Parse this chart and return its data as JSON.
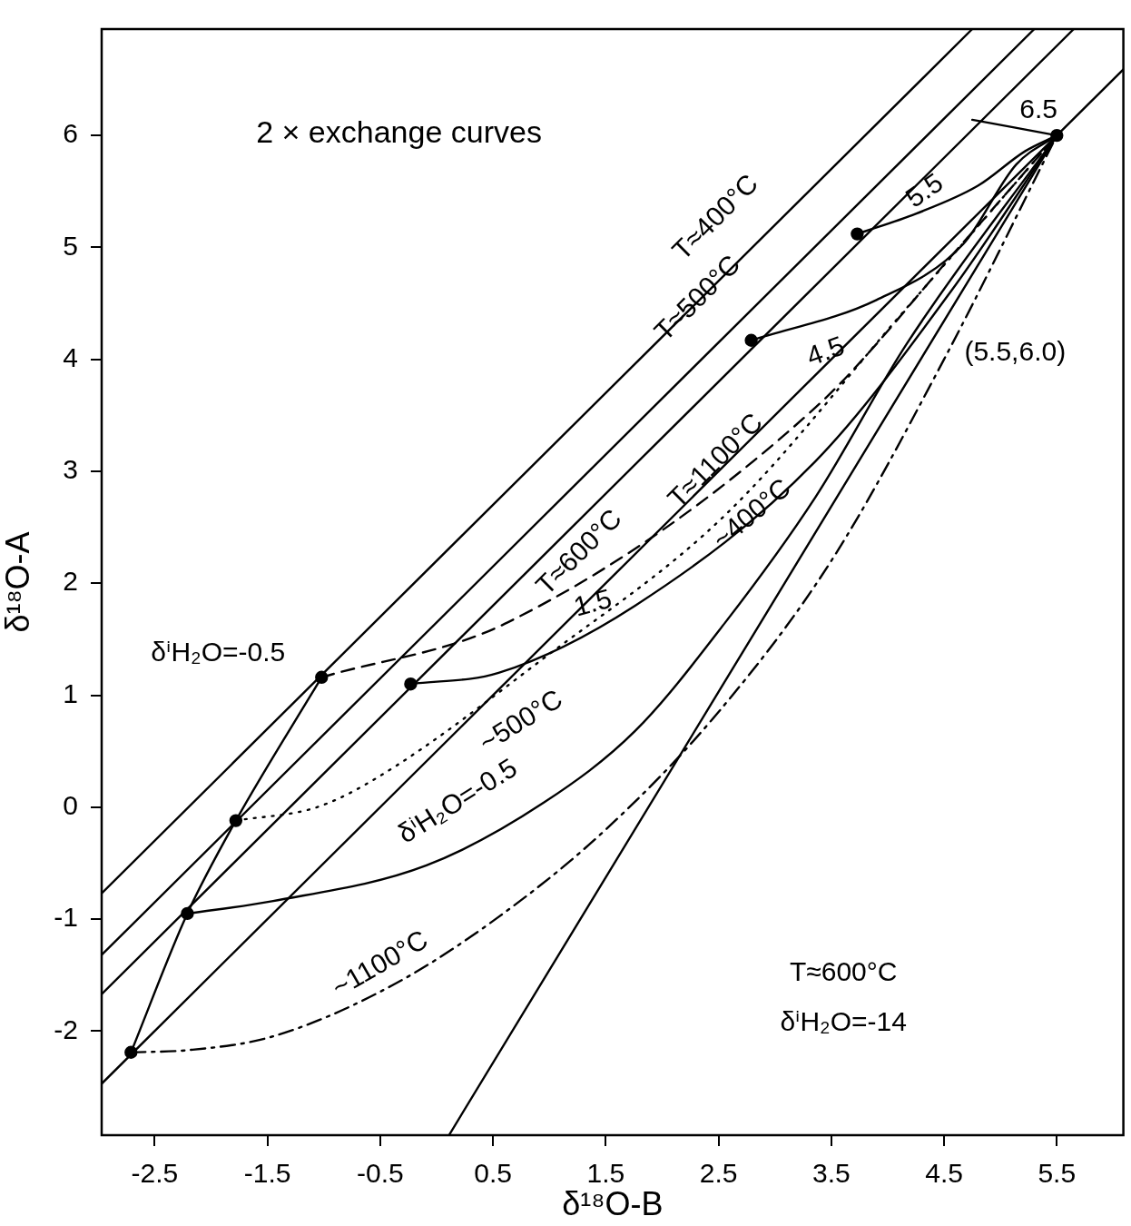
{
  "chart_data": {
    "type": "line",
    "xlabel": "δ¹⁸O-B",
    "ylabel": "δ¹⁸O-A",
    "xlim": [
      -2.97,
      6.09
    ],
    "ylim": [
      -2.93,
      6.95
    ],
    "xticks": [
      -2.5,
      -1.5,
      -0.5,
      0.5,
      1.5,
      2.5,
      3.5,
      4.5,
      5.5
    ],
    "yticks": [
      -2,
      -1,
      0,
      1,
      2,
      3,
      4,
      5,
      6
    ],
    "grid": false,
    "legend": false,
    "marker": "none",
    "series": [
      {
        "color": "#000000",
        "line_style": "solid",
        "x": [
          -2.97,
          4.75
        ],
        "values": [
          -0.77,
          6.95
        ]
      },
      {
        "color": "#000000",
        "line_style": "solid",
        "x": [
          -2.97,
          5.3
        ],
        "values": [
          -1.32,
          6.95
        ]
      },
      {
        "color": "#000000",
        "line_style": "solid",
        "x": [
          -2.97,
          5.65
        ],
        "values": [
          -1.67,
          6.95
        ]
      },
      {
        "color": "#000000",
        "line_style": "solid",
        "x": [
          -2.97,
          6.09
        ],
        "values": [
          -2.47,
          6.59
        ]
      },
      {
        "color": "#000000",
        "line_style": "solid",
        "x": [
          0.11,
          5.5
        ],
        "values": [
          -2.93,
          6.0
        ]
      },
      {
        "color": "#000000",
        "line_style": "solid",
        "x": [
          -2.71,
          -2.21,
          -1.78,
          -1.02
        ],
        "values": [
          -2.19,
          -0.95,
          -0.12,
          1.16
        ]
      },
      {
        "color": "#000000",
        "line_style": "dashed",
        "x": [
          -1.02,
          0.63,
          3.36,
          4.65,
          5.5
        ],
        "values": [
          1.16,
          1.65,
          3.57,
          5.02,
          6.0
        ]
      },
      {
        "color": "#000000",
        "line_style": "solid",
        "x": [
          -0.23,
          0.55,
          1.76,
          3.36,
          4.57,
          5.5
        ],
        "values": [
          1.1,
          1.2,
          1.8,
          3.09,
          4.62,
          6.0
        ]
      },
      {
        "color": "#000000",
        "line_style": "dotted",
        "x": [
          -1.78,
          -1.06,
          -0.5,
          0.95,
          2.56,
          4.17,
          5.5
        ],
        "values": [
          -0.12,
          0.0,
          0.28,
          1.33,
          2.61,
          4.46,
          6.0
        ]
      },
      {
        "color": "#000000",
        "line_style": "solid",
        "x": [
          -2.21,
          -1.46,
          -0.09,
          0.95,
          1.76,
          2.56,
          3.36,
          4.17,
          5.5
        ],
        "values": [
          -0.95,
          -0.84,
          -0.52,
          0.04,
          0.68,
          1.65,
          2.77,
          4.14,
          6.0
        ]
      },
      {
        "color": "#000000",
        "line_style": "dashdot",
        "x": [
          -2.71,
          -2.2,
          -1.46,
          -0.39,
          0.55,
          1.5,
          2.5,
          3.5,
          4.5,
          5.5
        ],
        "values": [
          -2.19,
          -2.17,
          -2.05,
          -1.59,
          -0.98,
          -0.2,
          0.85,
          2.2,
          4.0,
          6.0
        ]
      },
      {
        "color": "#000000",
        "line_style": "solid",
        "x": [
          2.79,
          3.9,
          4.67,
          5.14,
          5.5
        ],
        "values": [
          4.17,
          4.53,
          5.03,
          5.74,
          6.0
        ]
      },
      {
        "color": "#000000",
        "line_style": "solid",
        "x": [
          3.73,
          4.25,
          4.8,
          5.22,
          5.5
        ],
        "values": [
          5.12,
          5.3,
          5.55,
          5.86,
          6.0
        ]
      },
      {
        "color": "#000000",
        "line_style": "solid",
        "x": [
          4.75,
          5.5
        ],
        "values": [
          6.14,
          6.0
        ]
      },
      {
        "type": "scatter",
        "marker": "circle",
        "color": "#000000",
        "x": [
          -2.71,
          -2.21,
          -1.78,
          -1.02,
          -0.23,
          2.79,
          3.73,
          5.5
        ],
        "values": [
          -2.19,
          -0.95,
          -0.12,
          1.16,
          1.1,
          4.17,
          5.12,
          6.0
        ]
      }
    ],
    "annotations": [
      "2 × exchange curves",
      "T≈400°C",
      "T≈500°C",
      "T≈600°C",
      "T≈1100°C",
      "~400°C",
      "1.5",
      "~500°C",
      "δⁱH₂O=-0.5",
      "~1100°C",
      "δⁱH₂O=-0.5",
      "4.5",
      "5.5",
      "6.5",
      "(5.5,6.0)",
      "T≈600°C",
      "δⁱH₂O=-14"
    ]
  }
}
